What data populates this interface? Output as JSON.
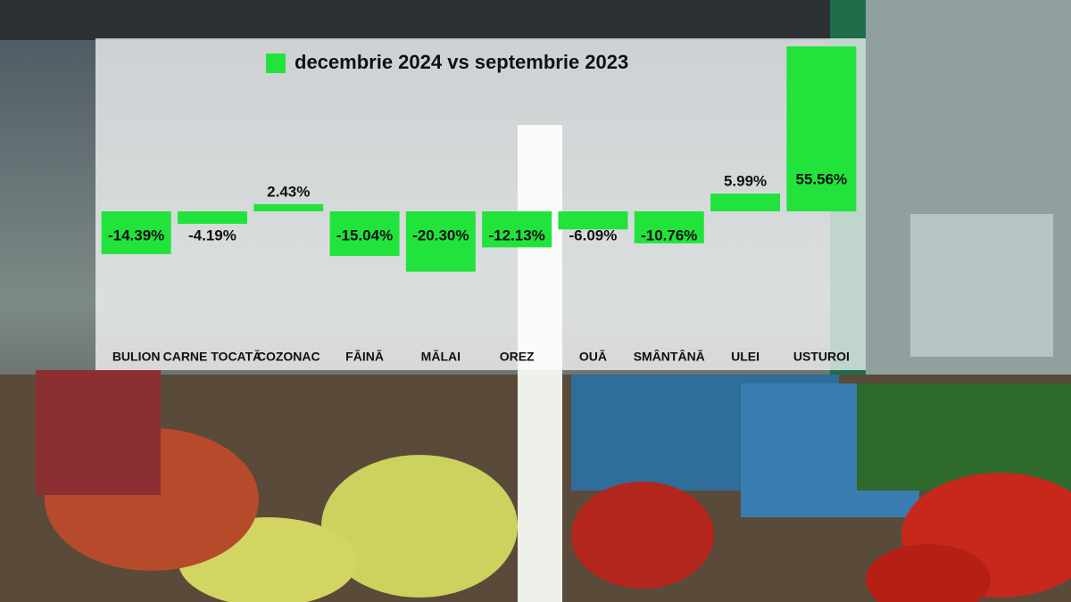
{
  "chart_data": {
    "type": "bar",
    "categories": [
      "BULION",
      "CARNE TOCATĂ",
      "COZONAC",
      "FĂINĂ",
      "MĂLAI",
      "OREZ",
      "OUĂ",
      "SMÂNTÂNĂ",
      "ULEI",
      "USTUROI"
    ],
    "series": [
      {
        "name": "decembrie 2024 vs septembrie 2023",
        "color": "#22e33c",
        "values": [
          -14.39,
          -4.19,
          2.43,
          -15.04,
          -20.3,
          -12.13,
          -6.09,
          -10.76,
          5.99,
          55.56
        ],
        "value_labels": [
          "-14.39%",
          "-4.19%",
          "2.43%",
          "-15.04%",
          "-20.30%",
          "-12.13%",
          "-6.09%",
          "-10.76%",
          "5.99%",
          "55.56%"
        ]
      }
    ]
  }
}
